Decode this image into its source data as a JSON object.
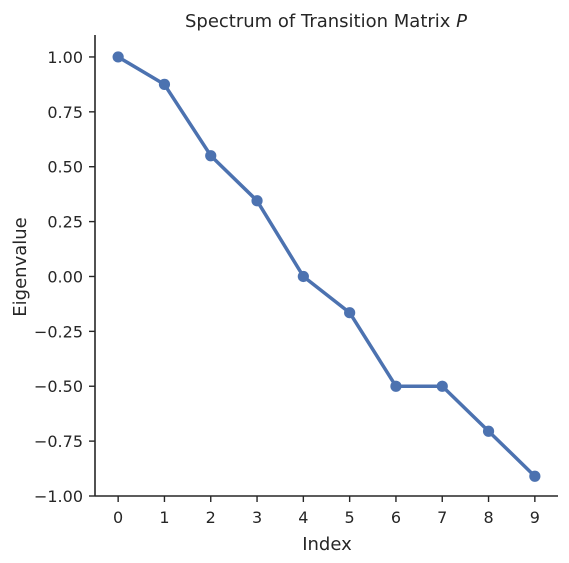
{
  "chart_data": {
    "type": "line",
    "title": "Spectrum of Transition Matrix ",
    "title_italic": "P",
    "xlabel": "Index",
    "ylabel": "Eigenvalue",
    "x": [
      0,
      1,
      2,
      3,
      4,
      5,
      6,
      7,
      8,
      9
    ],
    "y": [
      1.0,
      0.875,
      0.55,
      0.345,
      0.0,
      -0.165,
      -0.5,
      -0.5,
      -0.705,
      -0.91
    ],
    "xticks": [
      "0",
      "1",
      "2",
      "3",
      "4",
      "5",
      "6",
      "7",
      "8",
      "9"
    ],
    "yticks": [
      1.0,
      0.75,
      0.5,
      0.25,
      0.0,
      -0.25,
      -0.5,
      -0.75,
      -1.0
    ],
    "ytick_labels": [
      "1.00",
      "0.75",
      "0.50",
      "0.25",
      "0.00",
      "−0.25",
      "−0.50",
      "−0.75",
      "−1.00"
    ],
    "ylim": [
      -1.0,
      1.1
    ],
    "xlim": [
      -0.5,
      9.5
    ],
    "grid": false,
    "color": "#4c72b0"
  }
}
